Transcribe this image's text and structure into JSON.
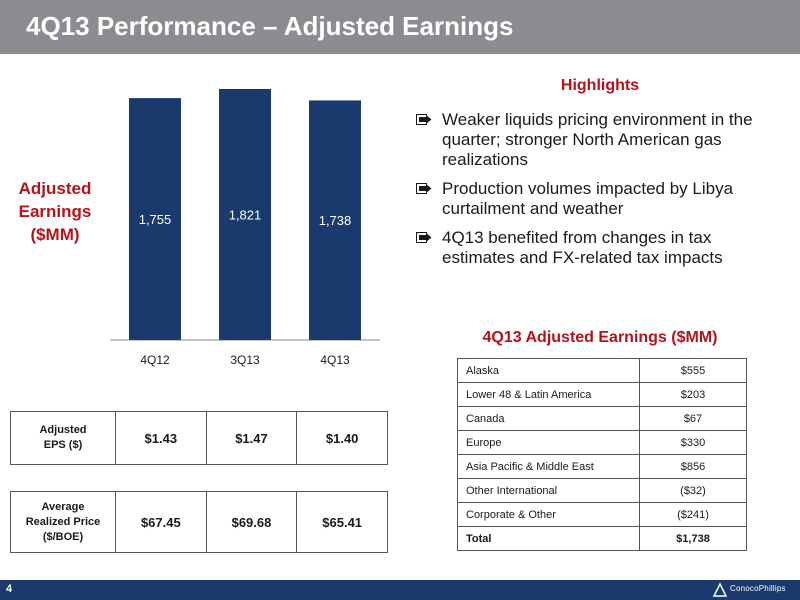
{
  "header": {
    "title": "4Q13 Performance – Adjusted Earnings"
  },
  "chart_label": [
    "Adjusted",
    "Earnings",
    "($MM)"
  ],
  "chart_data": {
    "type": "bar",
    "title": "",
    "ylabel": "Adjusted Earnings ($MM)",
    "categories": [
      "4Q12",
      "3Q13",
      "4Q13"
    ],
    "values": [
      1755,
      1821,
      1738
    ],
    "value_labels": [
      "1,755",
      "1,821",
      "1,738"
    ],
    "ylim": [
      0,
      2000
    ],
    "bar_color": "#1a3a6e",
    "grid": false
  },
  "highlights": {
    "title": "Highlights",
    "bullets": [
      "Weaker liquids pricing environment in the quarter; stronger North American gas realizations",
      "Production volumes impacted by Libya curtailment and weather",
      "4Q13 benefited from changes in tax estimates and FX-related tax impacts"
    ]
  },
  "segment_table": {
    "title": "4Q13 Adjusted Earnings ($MM)",
    "rows": [
      {
        "segment": "Alaska",
        "value": "$555"
      },
      {
        "segment": "Lower 48 & Latin America",
        "value": "$203"
      },
      {
        "segment": "Canada",
        "value": "$67"
      },
      {
        "segment": "Europe",
        "value": "$330"
      },
      {
        "segment": "Asia Pacific & Middle East",
        "value": "$856"
      },
      {
        "segment": "Other International",
        "value": "($32)"
      },
      {
        "segment": "Corporate & Other",
        "value": "($241)"
      },
      {
        "segment": "Total",
        "value": "$1,738"
      }
    ]
  },
  "eps": {
    "label_line1": "Adjusted",
    "label_line2": "EPS ($)",
    "values": [
      "$1.43",
      "$1.47",
      "$1.40"
    ]
  },
  "realized_price": {
    "label_line1": "Average",
    "label_line2": "Realized Price",
    "label_line3": "($/BOE)",
    "values": [
      "$67.45",
      "$69.68",
      "$65.41"
    ]
  },
  "footer": {
    "page_number": "4",
    "logo_text": "ConocoPhillips"
  },
  "colors": {
    "accent_red": "#b5121b",
    "navy": "#1a3a6e",
    "title_bar": "#8a8c8f"
  }
}
